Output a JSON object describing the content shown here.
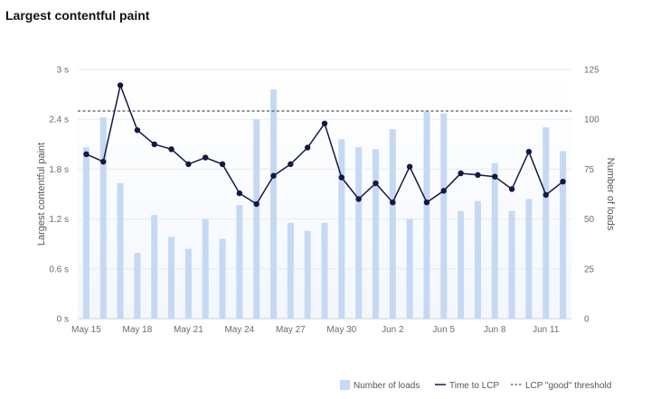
{
  "chart_data": {
    "type": "bar+line",
    "title": "Largest contentful paint",
    "categories": [
      "May 15",
      "May 16",
      "May 17",
      "May 18",
      "May 19",
      "May 20",
      "May 21",
      "May 22",
      "May 23",
      "May 24",
      "May 25",
      "May 26",
      "May 27",
      "May 28",
      "May 29",
      "May 30",
      "May 31",
      "Jun 1",
      "Jun 2",
      "Jun 3",
      "Jun 4",
      "Jun 5",
      "Jun 6",
      "Jun 7",
      "Jun 8",
      "Jun 9",
      "Jun 10",
      "Jun 11",
      "Jun 12"
    ],
    "x_tick_labels": [
      "May 15",
      "May 18",
      "May 21",
      "May 24",
      "May 27",
      "May 30",
      "Jun 2",
      "Jun 5",
      "Jun 8",
      "Jun 11"
    ],
    "y_left": {
      "label": "Largest contentful paint",
      "ticks": [
        "0 s",
        "0.6 s",
        "1.2 s",
        "1.8 s",
        "2.4 s",
        "3 s"
      ],
      "range": [
        0,
        3
      ],
      "unit": "s"
    },
    "y_right": {
      "label": "Number of loads",
      "ticks": [
        "0",
        "25",
        "50",
        "75",
        "100",
        "125"
      ],
      "range": [
        0,
        125
      ]
    },
    "series": [
      {
        "name": "Number of loads",
        "kind": "bar",
        "axis": "right",
        "color": "#c5d9f3",
        "values": [
          86,
          101,
          68,
          33,
          52,
          41,
          35,
          50,
          40,
          57,
          100,
          115,
          48,
          44,
          48,
          90,
          86,
          85,
          95,
          50,
          104,
          103,
          54,
          59,
          78,
          54,
          60,
          96,
          84
        ]
      },
      {
        "name": "Time to LCP",
        "kind": "line",
        "axis": "left",
        "color": "#151745",
        "values": [
          1.98,
          1.89,
          2.81,
          2.27,
          2.1,
          2.04,
          1.86,
          1.94,
          1.86,
          1.51,
          1.38,
          1.72,
          1.86,
          2.06,
          2.35,
          1.7,
          1.44,
          1.63,
          1.4,
          1.83,
          1.4,
          1.54,
          1.75,
          1.73,
          1.71,
          1.56,
          2.01,
          1.49,
          1.65
        ]
      }
    ],
    "threshold": {
      "name": "LCP \"good\" threshold",
      "value": 2.5,
      "axis": "left",
      "color": "#555555"
    },
    "legend": [
      {
        "label": "Number of loads",
        "type": "bar"
      },
      {
        "label": "Time to LCP",
        "type": "line"
      },
      {
        "label": "LCP \"good\" threshold",
        "type": "dashed"
      }
    ],
    "legend_position": "bottom-right",
    "grid": true
  }
}
